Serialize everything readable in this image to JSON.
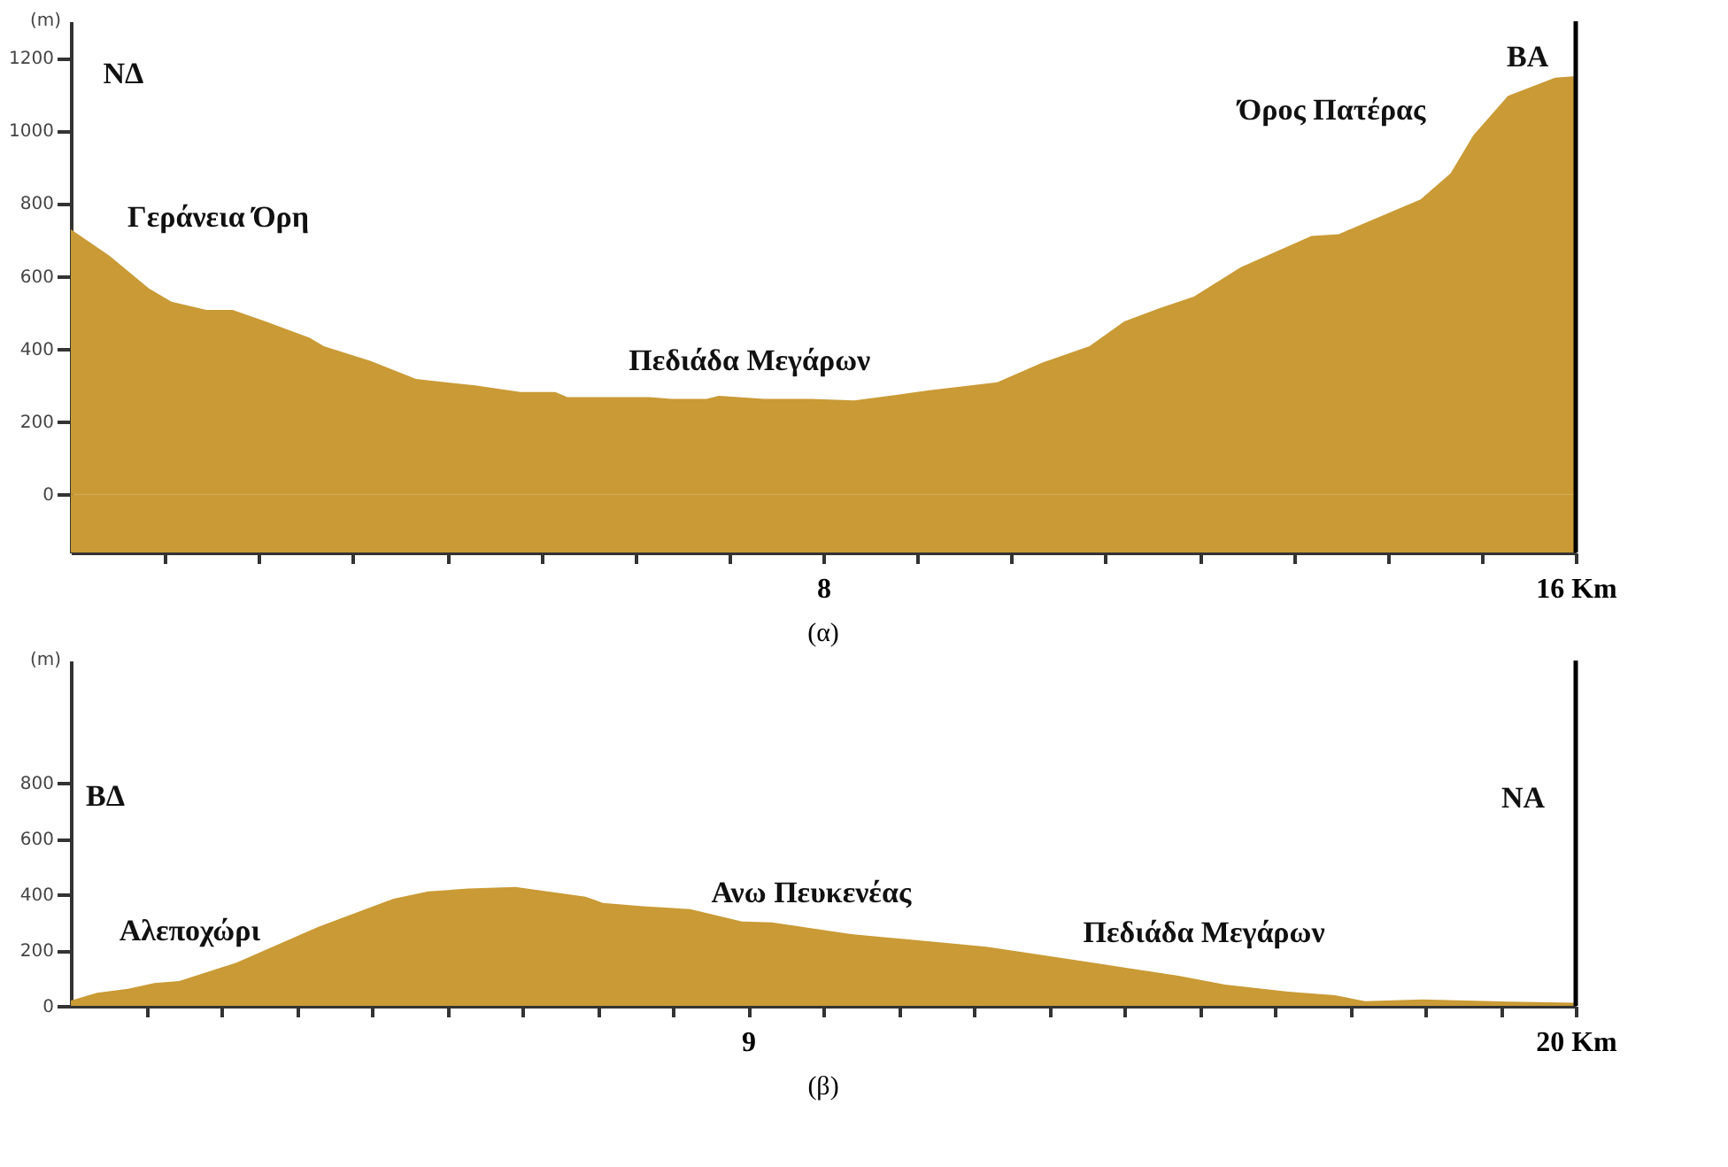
{
  "chart_data": [
    {
      "type": "area",
      "title": "(α)",
      "ylabel": "(m)",
      "x": [
        0,
        0.41,
        0.83,
        1.07,
        1.44,
        1.72,
        2.07,
        2.54,
        2.69,
        3.19,
        3.67,
        4.3,
        4.78,
        5.15,
        5.28,
        6.15,
        6.39,
        6.76,
        6.89,
        7.37,
        7.87,
        8.33,
        9.11,
        9.85,
        10.33,
        10.83,
        11.2,
        11.57,
        11.94,
        12.44,
        13.19,
        13.48,
        14.35,
        14.67,
        14.91,
        15.28,
        15.78,
        16
      ],
      "series": [
        {
          "color": "#c99a35",
          "values": [
            728,
            656,
            566,
            529,
            507,
            507,
            475,
            430,
            407,
            366,
            317,
            299,
            281,
            281,
            267,
            267,
            262,
            262,
            271,
            262,
            262,
            258,
            285,
            308,
            362,
            407,
            475,
            511,
            543,
            624,
            710,
            715,
            810,
            882,
            986,
            1095,
            1145,
            1149
          ]
        }
      ],
      "xlim": [
        0,
        16
      ],
      "xticks": [
        {
          "value": 1,
          "label": null
        },
        {
          "value": 2,
          "label": null
        },
        {
          "value": 3,
          "label": null
        },
        {
          "value": 4,
          "label": null
        },
        {
          "value": 5,
          "label": null
        },
        {
          "value": 6,
          "label": null
        },
        {
          "value": 7,
          "label": null
        },
        8,
        {
          "value": 9,
          "label": null
        },
        {
          "value": 10,
          "label": null
        },
        {
          "value": 11,
          "label": null
        },
        {
          "value": 12,
          "label": null
        },
        {
          "value": 13,
          "label": null
        },
        {
          "value": 14,
          "label": null
        },
        {
          "value": 15,
          "label": null
        },
        {
          "value": 16,
          "label": "16 Km"
        }
      ],
      "ylim": [
        -160,
        1300
      ],
      "yticks": [
        0,
        200,
        400,
        600,
        800,
        1000,
        1200
      ],
      "ref_lines": [
        {
          "axis": "x",
          "value": 16,
          "color": "#000000"
        }
      ],
      "bands": [
        {
          "axis": "y",
          "from": -160,
          "to": 0,
          "color": "#c99a35"
        }
      ],
      "annotations": [
        "ΝΔ",
        "Γεράνεια Όρη",
        "Πεδιάδα Μεγάρων",
        "Όρος Πατέρας",
        "ΒΑ"
      ]
    },
    {
      "type": "area",
      "title": "(β)",
      "ylabel": "(m)",
      "x": [
        0,
        0.35,
        0.76,
        1.11,
        1.44,
        2.2,
        3.29,
        4.29,
        4.75,
        5.28,
        5.91,
        6.84,
        7.07,
        7.6,
        8.23,
        8.92,
        9.32,
        10.31,
        10.43,
        12.17,
        13.33,
        14.72,
        15.34,
        16.18,
        16.8,
        17.2,
        17.96,
        19.12,
        20
      ],
      "series": [
        {
          "color": "#c99a35",
          "values": [
            19,
            47,
            61,
            82,
            89,
            155,
            284,
            385,
            411,
            421,
            427,
            392,
            370,
            358,
            347,
            303,
            300,
            260,
            256,
            212,
            165,
            108,
            76,
            51,
            38,
            17,
            23,
            15,
            11
          ]
        }
      ],
      "xlim": [
        0,
        20
      ],
      "xticks": [
        {
          "value": 1,
          "label": null
        },
        {
          "value": 2,
          "label": null
        },
        {
          "value": 3,
          "label": null
        },
        {
          "value": 4,
          "label": null
        },
        {
          "value": 5,
          "label": null
        },
        {
          "value": 6,
          "label": null
        },
        {
          "value": 7,
          "label": null
        },
        {
          "value": 8,
          "label": null
        },
        9,
        {
          "value": 10,
          "label": null
        },
        {
          "value": 11,
          "label": null
        },
        {
          "value": 12,
          "label": null
        },
        {
          "value": 13,
          "label": null
        },
        {
          "value": 14,
          "label": null
        },
        {
          "value": 15,
          "label": null
        },
        {
          "value": 16,
          "label": null
        },
        {
          "value": 17,
          "label": null
        },
        {
          "value": 18,
          "label": null
        },
        {
          "value": 19,
          "label": null
        },
        {
          "value": 20,
          "label": "20 Km"
        }
      ],
      "ylim": [
        0,
        1240
      ],
      "yticks": [
        0,
        200,
        400,
        600,
        800
      ],
      "ref_lines": [
        {
          "axis": "x",
          "value": 20,
          "color": "#000000"
        }
      ],
      "annotations": [
        "ΒΔ",
        "Αλεποχώρι",
        "Ανω Πευκενέας",
        "Πεδιάδα Μεγάρων",
        "ΝΑ"
      ]
    }
  ]
}
